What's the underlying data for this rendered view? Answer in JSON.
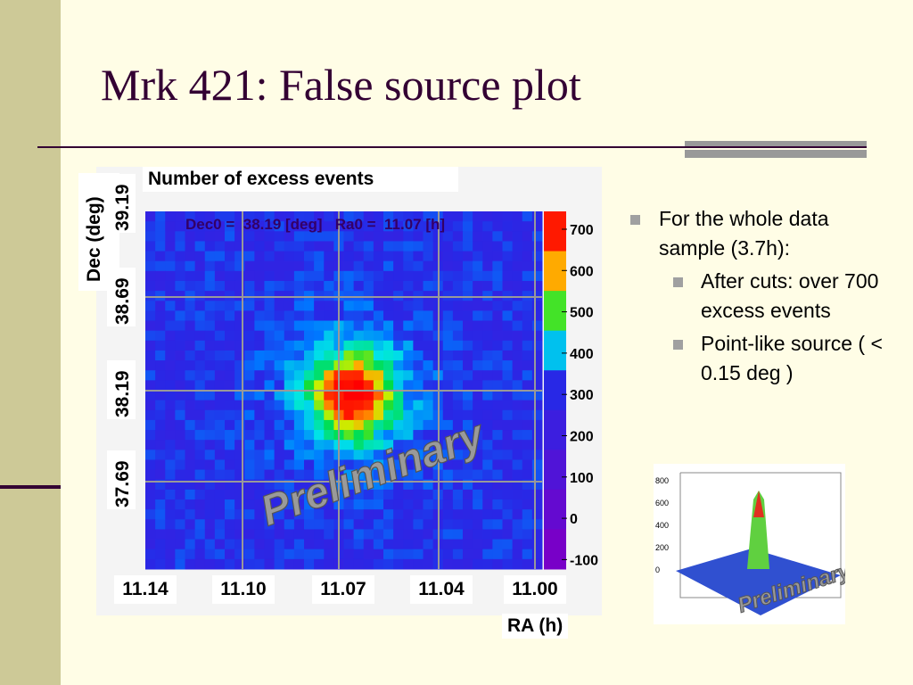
{
  "title": "Mrk 421: False source plot",
  "plot": {
    "title": "Number of excess events",
    "y_label": "Dec (deg)",
    "x_label": "RA (h)",
    "yticks": [
      "39.19",
      "38.69",
      "38.19",
      "37.69"
    ],
    "xticks": [
      "11.14",
      "11.10",
      "11.07",
      "11.04",
      "11.00"
    ],
    "annotation": "Dec0 =  38.19 [deg]   Ra0 =  11.07 [h]",
    "colorbar_ticks": [
      "700",
      "600",
      "500",
      "400",
      "300",
      "200",
      "100",
      "0",
      "-100"
    ],
    "watermark": "Preliminary"
  },
  "bullets": [
    {
      "text": "For the whole data sample (3.7h):",
      "sub": [
        "After cuts: over 700 excess events",
        "Point-like source ( < 0.15 deg )"
      ]
    }
  ],
  "inset": {
    "zticks": [
      "800",
      "600",
      "400",
      "200",
      "0"
    ],
    "watermark": "Preliminary"
  }
}
